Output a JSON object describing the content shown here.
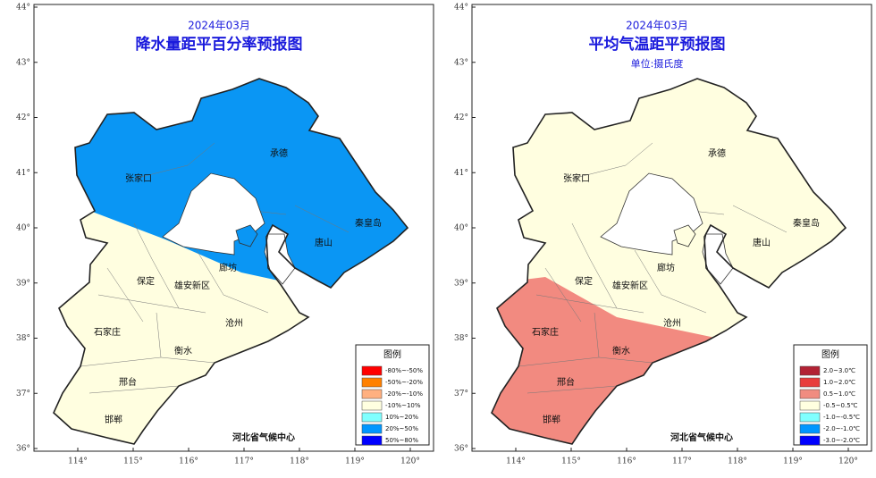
{
  "panels": [
    {
      "period": "2024年03月",
      "title": "降水量距平百分率预报图",
      "base_color": "#fffee0",
      "zone_color": "#0a96f4",
      "zone": "north",
      "y_ticks": [
        "36°",
        "37°",
        "38°",
        "39°",
        "40°",
        "41°",
        "42°",
        "43°",
        "44°"
      ],
      "x_ticks": [
        "114°",
        "115°",
        "116°",
        "117°",
        "118°",
        "119°",
        "120°"
      ],
      "cities": [
        "张家口",
        "承德",
        "秦皇岛",
        "唐山",
        "廊坊",
        "保定",
        "雄安新区",
        "沧州",
        "石家庄",
        "衡水",
        "邢台",
        "邯郸"
      ],
      "legend": {
        "title": "图例",
        "items": [
          {
            "label": "-80%~-50%",
            "color": "#ff0000"
          },
          {
            "label": "-50%~-20%",
            "color": "#ff8000"
          },
          {
            "label": "-20%~-10%",
            "color": "#ffb080"
          },
          {
            "label": "-10%~10%",
            "color": "#ffffe0"
          },
          {
            "label": "10%~20%",
            "color": "#80ffff"
          },
          {
            "label": "20%~50%",
            "color": "#0096ff"
          },
          {
            "label": "50%~80%",
            "color": "#0000ff"
          }
        ]
      },
      "credit": "河北省气候中心"
    },
    {
      "period": "2024年03月",
      "title": "平均气温距平预报图",
      "unit": "单位:摄氏度",
      "base_color": "#fffee0",
      "zone_color": "#f28a80",
      "zone": "south",
      "y_ticks": [
        "36°",
        "37°",
        "38°",
        "39°",
        "40°",
        "41°",
        "42°",
        "43°",
        "44°"
      ],
      "x_ticks": [
        "114°",
        "115°",
        "116°",
        "117°",
        "118°",
        "119°",
        "120°"
      ],
      "cities": [
        "张家口",
        "承德",
        "秦皇岛",
        "唐山",
        "廊坊",
        "保定",
        "雄安新区",
        "沧州",
        "石家庄",
        "衡水",
        "邢台",
        "邯郸"
      ],
      "legend": {
        "title": "图例",
        "items": [
          {
            "label": "2.0~3.0℃",
            "color": "#b22234"
          },
          {
            "label": "1.0~2.0℃",
            "color": "#e83c3c"
          },
          {
            "label": "0.5~1.0℃",
            "color": "#f08c80"
          },
          {
            "label": "-0.5~0.5℃",
            "color": "#ffffe0"
          },
          {
            "label": "-1.0~-0.5℃",
            "color": "#80ffff"
          },
          {
            "label": "-2.0~-1.0℃",
            "color": "#0096ff"
          },
          {
            "label": "-3.0~-2.0℃",
            "color": "#0000ff"
          }
        ]
      },
      "credit": "河北省气候中心"
    }
  ]
}
